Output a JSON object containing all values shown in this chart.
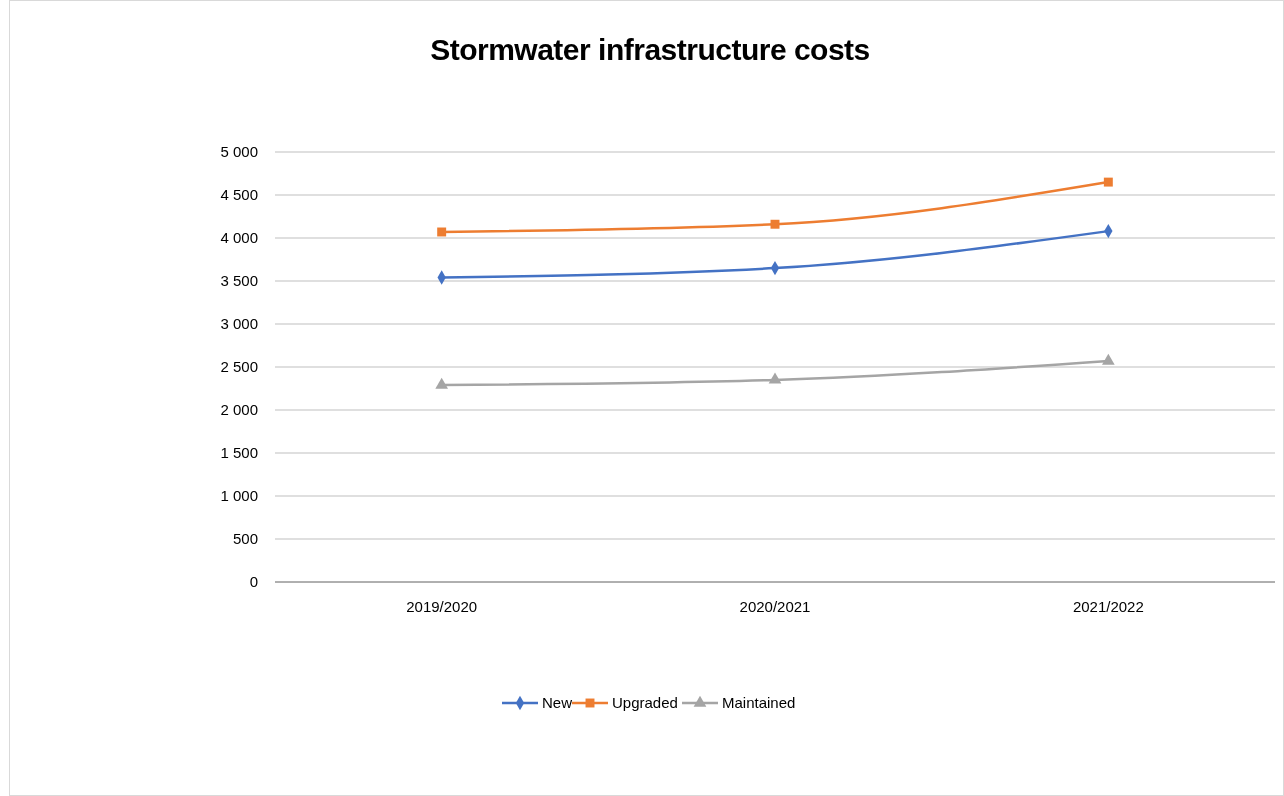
{
  "chart_data": {
    "type": "line",
    "title": "Stormwater infrastructure costs",
    "categories": [
      "2019/2020",
      "2020/2021",
      "2021/2022"
    ],
    "series": [
      {
        "name": "New",
        "color": "#4472c4",
        "marker": "diamond",
        "values": [
          3540,
          3650,
          4080
        ]
      },
      {
        "name": "Upgraded",
        "color": "#ed7d31",
        "marker": "square",
        "values": [
          4070,
          4160,
          4650
        ]
      },
      {
        "name": "Maintained",
        "color": "#a5a5a5",
        "marker": "triangle",
        "values": [
          2290,
          2350,
          2570
        ]
      }
    ],
    "ylim": [
      0,
      5000
    ],
    "yticks": [
      0,
      {
        "value": 500,
        "label": "500"
      },
      {
        "value": 1000,
        "label": "1 000"
      },
      {
        "value": 1500,
        "label": "1 500"
      },
      {
        "value": 2000,
        "label": "2 000"
      },
      {
        "value": 2500,
        "label": "2 500"
      },
      {
        "value": 3000,
        "label": "3 000"
      },
      {
        "value": 3500,
        "label": "3 500"
      },
      {
        "value": 4000,
        "label": "4 000"
      },
      {
        "value": 4500,
        "label": "4 500"
      },
      {
        "value": 5000,
        "label": "5 000"
      }
    ],
    "grid": "y",
    "legend": "bottom"
  }
}
